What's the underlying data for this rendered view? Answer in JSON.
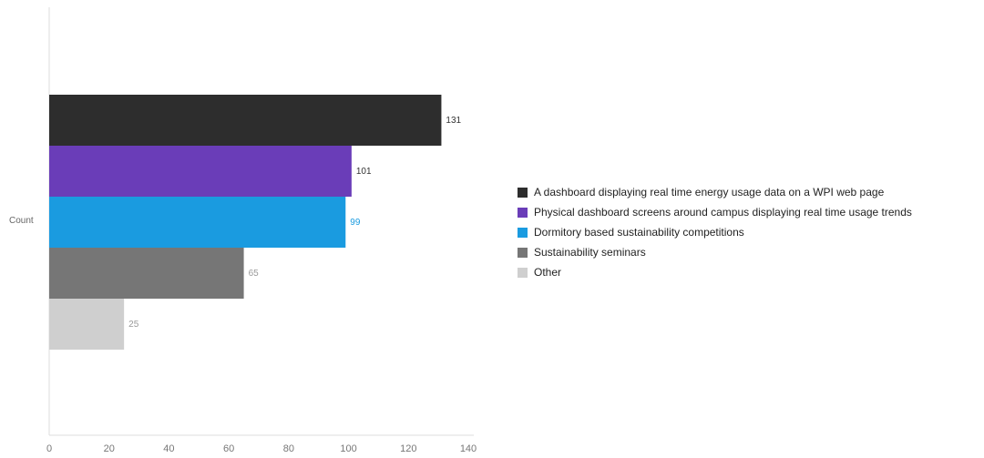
{
  "chart_data": {
    "type": "bar",
    "orientation": "horizontal",
    "category_label": "Count",
    "series": [
      {
        "name": "A dashboard displaying real time energy usage data on a WPI web page",
        "value": 131,
        "color": "#2d2d2d"
      },
      {
        "name": "Physical dashboard screens around campus displaying real time usage trends",
        "value": 101,
        "color": "#6a3db8"
      },
      {
        "name": "Dormitory based sustainability competitions",
        "value": 99,
        "color": "#1a9be0"
      },
      {
        "name": "Sustainability seminars",
        "value": 65,
        "color": "#767676"
      },
      {
        "name": "Other",
        "value": 25,
        "color": "#cfcfcf"
      }
    ],
    "xlim": [
      0,
      140
    ],
    "xticks": [
      0,
      20,
      40,
      60,
      80,
      100,
      120,
      140
    ],
    "legend_position": "right",
    "grid": false
  }
}
